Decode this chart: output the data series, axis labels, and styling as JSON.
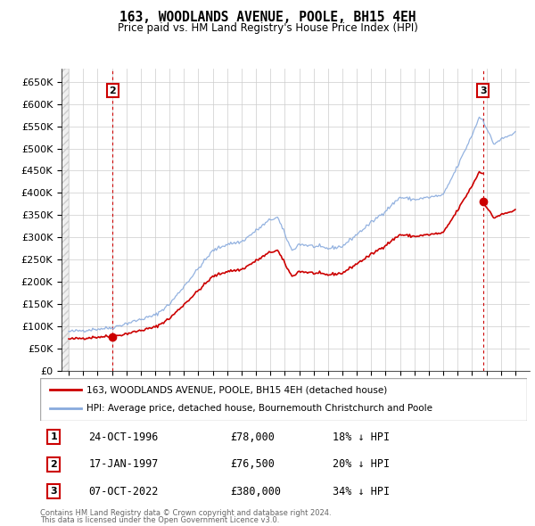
{
  "title": "163, WOODLANDS AVENUE, POOLE, BH15 4EH",
  "subtitle": "Price paid vs. HM Land Registry's House Price Index (HPI)",
  "legend_line1": "163, WOODLANDS AVENUE, POOLE, BH15 4EH (detached house)",
  "legend_line2": "HPI: Average price, detached house, Bournemouth Christchurch and Poole",
  "footer1": "Contains HM Land Registry data © Crown copyright and database right 2024.",
  "footer2": "This data is licensed under the Open Government Licence v3.0.",
  "table_rows": [
    {
      "num": "1",
      "date": "24-OCT-1996",
      "price": "£78,000",
      "pct": "18% ↓ HPI"
    },
    {
      "num": "2",
      "date": "17-JAN-1997",
      "price": "£76,500",
      "pct": "20% ↓ HPI"
    },
    {
      "num": "3",
      "date": "07-OCT-2022",
      "price": "£380,000",
      "pct": "34% ↓ HPI"
    }
  ],
  "property_color": "#cc0000",
  "hpi_color": "#88aadd",
  "grid_color": "#cccccc",
  "ylim": [
    0,
    680000
  ],
  "yticks": [
    0,
    50000,
    100000,
    150000,
    200000,
    250000,
    300000,
    350000,
    400000,
    450000,
    500000,
    550000,
    600000,
    650000
  ],
  "xlim_left": 1993.5,
  "xlim_right": 2026.0,
  "xticks": [
    1994,
    1995,
    1996,
    1997,
    1998,
    1999,
    2000,
    2001,
    2002,
    2003,
    2004,
    2005,
    2006,
    2007,
    2008,
    2009,
    2010,
    2011,
    2012,
    2013,
    2014,
    2015,
    2016,
    2017,
    2018,
    2019,
    2020,
    2021,
    2022,
    2023,
    2024,
    2025
  ],
  "sale1_year": 1996.82,
  "sale1_price": 78000,
  "sale2_year": 1997.05,
  "sale2_price": 76500,
  "sale3_year": 2022.77,
  "sale3_price": 380000
}
